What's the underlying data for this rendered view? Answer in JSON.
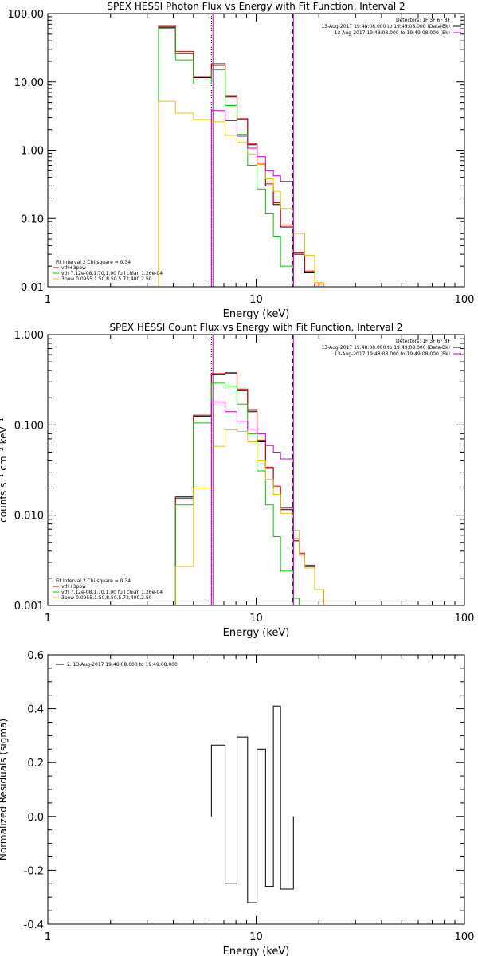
{
  "chart_data": [
    {
      "type": "line",
      "title": "SPEX HESSI Photon Flux vs Energy with Fit Function, Interval 2",
      "xlabel": "Energy (keV)",
      "ylabel": "",
      "xscale": "log",
      "yscale": "log",
      "xlim": [
        1,
        100
      ],
      "ylim": [
        0.01,
        100
      ],
      "xticks": [
        "1",
        "10",
        "100"
      ],
      "yticks": [
        "0.01",
        "0.10",
        "1.00",
        "10.00",
        "100.00"
      ],
      "ytick_values": [
        0.01,
        0.1,
        1,
        10,
        100
      ],
      "vlines": [
        {
          "x": 6.1,
          "style": "dotted",
          "color": "#000000"
        },
        {
          "x": 6.2,
          "style": "solid",
          "color": "#cc00cc"
        },
        {
          "x": 15.0,
          "style": "dashed",
          "color": "#000000"
        },
        {
          "x": 15.1,
          "style": "solid",
          "color": "#cc00cc"
        }
      ],
      "legend_top_right": [
        {
          "text": "Detectors: 1F 3F 6F 8F",
          "color": ""
        },
        {
          "text": "13-Aug-2017 19:48:08.000 to 19:49:08.000 (Data-Bk)",
          "color": "#000000"
        },
        {
          "text": "13-Aug-2017 19:48:08.000 to 19:49:08.000 (Bk)",
          "color": "#cc00cc"
        }
      ],
      "legend_bottom_left": [
        {
          "text": "Fit Interval 2   Chi-square = 0.34",
          "color": ""
        },
        {
          "text": "vth+3pow",
          "color": "#dd0000"
        },
        {
          "text": "vth 7.12e-08,1.70,1.00  full chian 1.26e-04",
          "color": "#00cc00"
        },
        {
          "text": "3pow 0.0955,1.50,8.50,5.72,400,2.50",
          "color": "#e6c800"
        }
      ],
      "step_edges": [
        3.4,
        4.1,
        5.0,
        6.1,
        7.1,
        8.1,
        9.1,
        10.1,
        11.1,
        12.1,
        13.1,
        15.1,
        17.1,
        19.1,
        21.1
      ],
      "series": [
        {
          "name": "Data-Bk",
          "color": "#000000",
          "values": [
            63,
            26,
            11.5,
            17.5,
            6.0,
            2.8,
            1.2,
            0.62,
            0.3,
            0.16,
            0.075,
            0.03,
            0.016,
            0.01
          ]
        },
        {
          "name": "vth+3pow",
          "color": "#dd0000",
          "values": [
            65,
            28,
            12,
            18.5,
            6.3,
            2.9,
            1.25,
            0.65,
            0.32,
            0.17,
            0.08,
            0.032,
            0.017,
            0.011
          ]
        },
        {
          "name": "vth",
          "color": "#00cc00",
          "values": [
            61,
            21,
            9.3,
            15,
            4.5,
            1.7,
            0.6,
            0.27,
            0.12,
            0.055,
            0.02,
            0.0098,
            0.0098,
            0.0098
          ]
        },
        {
          "name": "3pow",
          "color": "#e6c800",
          "values": [
            5.2,
            3.5,
            2.8,
            2.6,
            1.65,
            1.3,
            0.88,
            0.62,
            0.38,
            0.25,
            0.14,
            0.06,
            0.029,
            0.0115
          ]
        },
        {
          "name": "Bk",
          "color": "#cc00cc",
          "values": [
            null,
            null,
            null,
            3.8,
            2.7,
            1.6,
            1.07,
            0.8,
            0.5,
            0.42,
            0.35,
            null,
            null,
            null
          ]
        }
      ]
    },
    {
      "type": "line",
      "title": "SPEX HESSI Count Flux vs Energy with Fit Function, Interval 2",
      "xlabel": "Energy (keV)",
      "ylabel": "counts s⁻¹ cm⁻² keV⁻¹",
      "xscale": "log",
      "yscale": "log",
      "xlim": [
        1,
        100
      ],
      "ylim": [
        0.001,
        1
      ],
      "xticks": [
        "1",
        "10",
        "100"
      ],
      "yticks": [
        "0.001",
        "0.010",
        "0.100",
        "1.000"
      ],
      "ytick_values": [
        0.001,
        0.01,
        0.1,
        1
      ],
      "vlines": [
        {
          "x": 6.1,
          "style": "dotted",
          "color": "#000000"
        },
        {
          "x": 6.2,
          "style": "solid",
          "color": "#cc00cc"
        },
        {
          "x": 15.0,
          "style": "dashed",
          "color": "#000000"
        },
        {
          "x": 15.1,
          "style": "solid",
          "color": "#cc00cc"
        }
      ],
      "legend_top_right": [
        {
          "text": "Detectors: 1F 3F 6F 8F",
          "color": ""
        },
        {
          "text": "13-Aug-2017 19:48:08.000 to 19:49:08.000 (Data-Bk)",
          "color": "#000000"
        },
        {
          "text": "13-Aug-2017 19:48:08.000 to 19:49:08.000 (Bk)",
          "color": "#cc00cc"
        }
      ],
      "legend_bottom_left": [
        {
          "text": "Fit Interval 2   Chi-square = 0.34",
          "color": ""
        },
        {
          "text": "vth+3pow",
          "color": "#dd0000"
        },
        {
          "text": "vth 7.12e-08,1.70,1.00  full chian 1.26e-04",
          "color": "#00cc00"
        },
        {
          "text": "3pow 0.0955,1.50,8.50,5.72,400,2.50",
          "color": "#e6c800"
        }
      ],
      "step_edges": [
        4.1,
        5.0,
        6.1,
        7.1,
        8.1,
        9.1,
        10.1,
        11.1,
        12.1,
        13.1,
        15.1,
        16.1,
        17.1,
        19.1,
        21.1
      ],
      "series": [
        {
          "name": "Data-Bk",
          "color": "#000000",
          "values": [
            0.0155,
            0.125,
            0.36,
            0.37,
            0.24,
            0.14,
            0.065,
            0.033,
            0.02,
            0.0115,
            0.0052,
            0.0037,
            0.0027,
            0.0015
          ]
        },
        {
          "name": "vth+3pow",
          "color": "#dd0000",
          "values": [
            0.016,
            0.128,
            0.37,
            0.38,
            0.25,
            0.145,
            0.068,
            0.034,
            0.021,
            0.012,
            0.0055,
            0.0038,
            0.0028,
            0.0015
          ]
        },
        {
          "name": "vth",
          "color": "#00cc00",
          "values": [
            0.013,
            0.105,
            0.29,
            0.27,
            0.17,
            0.08,
            0.031,
            0.013,
            0.0058,
            0.0024,
            0.0012,
            null,
            null,
            null
          ]
        },
        {
          "name": "3pow",
          "color": "#e6c800",
          "values": [
            0.0027,
            0.02,
            0.058,
            0.088,
            0.085,
            0.065,
            0.04,
            0.025,
            0.017,
            0.0105,
            0.0068,
            0.0036,
            0.0026,
            0.0015
          ]
        },
        {
          "name": "Bk",
          "color": "#cc00cc",
          "values": [
            null,
            null,
            0.18,
            0.14,
            0.11,
            0.09,
            0.08,
            0.059,
            0.05,
            0.042,
            null,
            null,
            null,
            null
          ]
        }
      ]
    },
    {
      "type": "line",
      "title": "",
      "xlabel": "Energy (keV)",
      "ylabel": "Normalized Residuals (sigma)",
      "xscale": "log",
      "yscale": "linear",
      "xlim": [
        1,
        100
      ],
      "ylim": [
        -0.4,
        0.6
      ],
      "xticks": [
        "1",
        "10",
        "100"
      ],
      "yticks": [
        "-0.4",
        "-0.2",
        "0.0",
        "0.2",
        "0.4",
        "0.6"
      ],
      "ytick_values": [
        -0.4,
        -0.2,
        0.0,
        0.2,
        0.4,
        0.6
      ],
      "legend_top_left": [
        {
          "text": "2. 13-Aug-2017 19:48:08.000 to 19:49:08.000",
          "color": "#000000"
        }
      ],
      "step_edges": [
        6.1,
        7.1,
        8.1,
        9.1,
        10.1,
        11.1,
        12.1,
        13.1,
        15.1
      ],
      "series": [
        {
          "name": "2. 13-Aug-2017 19:48:08.000 to 19:49:08.000",
          "color": "#000000",
          "values": [
            0.265,
            -0.25,
            0.295,
            -0.32,
            0.25,
            -0.26,
            0.41,
            -0.27
          ]
        }
      ]
    }
  ]
}
